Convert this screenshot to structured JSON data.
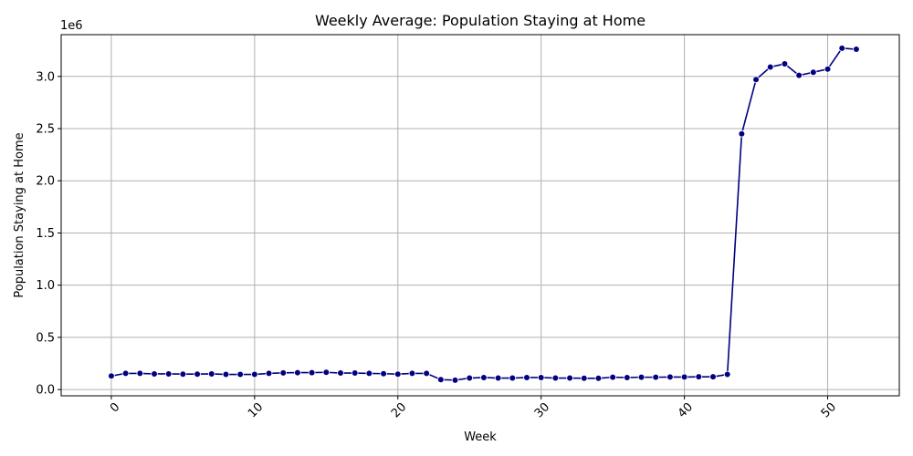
{
  "chart_data": {
    "type": "line",
    "title": "Weekly Average: Population Staying at Home",
    "xlabel": "Week",
    "ylabel": "Population Staying at Home",
    "y_offset_label": "1e6",
    "xlim": [
      -3.5,
      55
    ],
    "ylim": [
      -60000,
      3400000
    ],
    "x_ticks": [
      0,
      10,
      20,
      30,
      40,
      50
    ],
    "x_tick_labels": [
      "0",
      "10",
      "20",
      "30",
      "40",
      "50"
    ],
    "y_ticks": [
      0,
      500000,
      1000000,
      1500000,
      2000000,
      2500000,
      3000000
    ],
    "y_tick_labels": [
      "0.0",
      "0.5",
      "1.0",
      "1.5",
      "2.0",
      "2.5",
      "3.0"
    ],
    "grid": true,
    "x_tick_rotation": 45,
    "line_color": "#000080",
    "series": [
      {
        "x": [
          0,
          1,
          2,
          3,
          4,
          5,
          6,
          7,
          8,
          9,
          10,
          11,
          12,
          13,
          14,
          15,
          16,
          17,
          18,
          19,
          20,
          21,
          22,
          23,
          24,
          25,
          26,
          27,
          28,
          29,
          30,
          31,
          32,
          33,
          34,
          35,
          36,
          37,
          38,
          39,
          40,
          41,
          42,
          43,
          44,
          45,
          46,
          47,
          48,
          49,
          50,
          51,
          52
        ],
        "y": [
          130000,
          155000,
          155000,
          150000,
          150000,
          148000,
          148000,
          150000,
          145000,
          145000,
          145000,
          155000,
          160000,
          162000,
          162000,
          165000,
          158000,
          158000,
          155000,
          152000,
          148000,
          155000,
          155000,
          95000,
          90000,
          110000,
          115000,
          110000,
          110000,
          115000,
          115000,
          110000,
          110000,
          108000,
          108000,
          118000,
          115000,
          118000,
          118000,
          120000,
          120000,
          122000,
          122000,
          145000,
          2450000,
          2970000,
          3090000,
          3120000,
          3010000,
          3040000,
          3070000,
          3270000,
          3260000
        ]
      }
    ]
  }
}
